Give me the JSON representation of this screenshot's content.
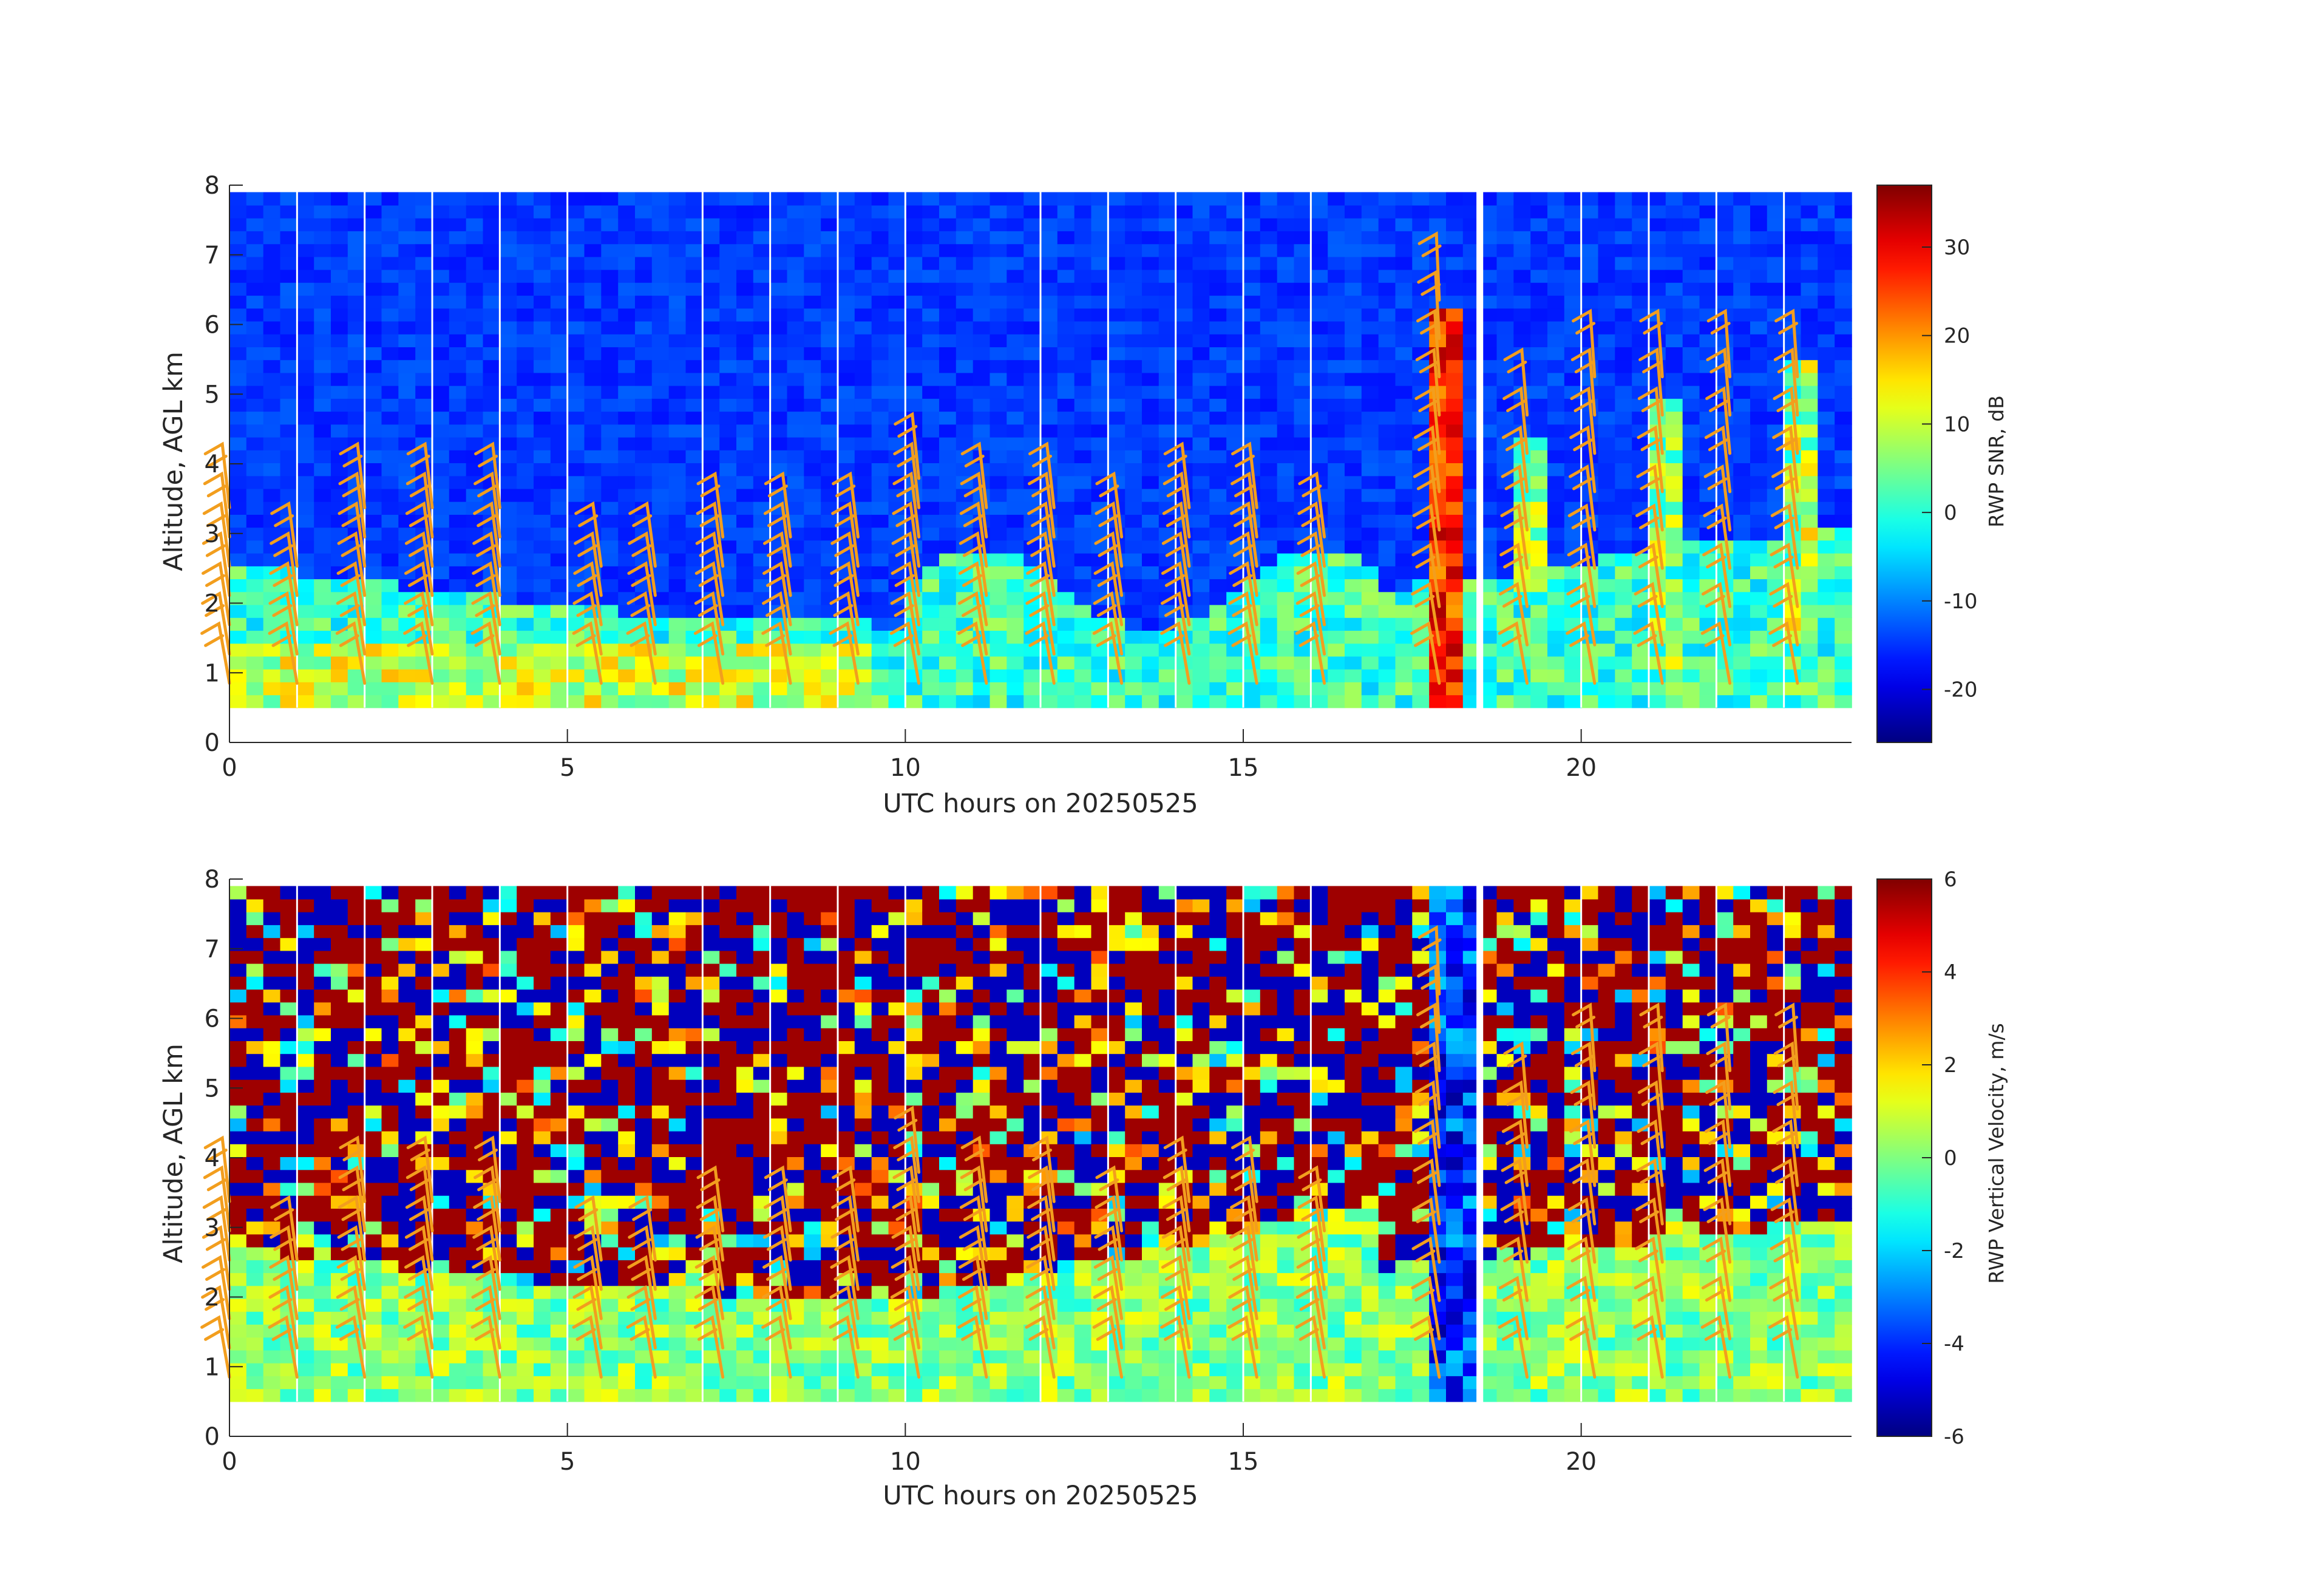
{
  "chart_data": [
    {
      "type": "heatmap",
      "title": "",
      "xlabel": "UTC hours on 20250525",
      "ylabel": "Altitude, AGL km",
      "xlim": [
        0,
        24
      ],
      "ylim": [
        0,
        8
      ],
      "x_ticks": [
        0,
        5,
        10,
        15,
        20
      ],
      "y_ticks": [
        0,
        1,
        2,
        3,
        4,
        5,
        6,
        7,
        8
      ],
      "colorbar": {
        "label": "RWP SNR, dB",
        "colormap": "jet",
        "range": [
          -26,
          37
        ],
        "ticks": [
          -20,
          -10,
          0,
          10,
          20,
          30
        ]
      },
      "data_range_km": [
        0.5,
        7.9
      ],
      "barb_color": "#f29e1e",
      "barb_times": [
        0,
        1,
        2,
        3,
        4,
        5.5,
        6.3,
        7.3,
        8.3,
        9.3,
        10.2,
        11.2,
        12.2,
        13.2,
        14.2,
        15.2,
        16.2,
        17.9,
        19.2,
        20.2,
        21.2,
        22.2,
        23.2
      ],
      "barb_tops_km": [
        3.5,
        2.9,
        3.6,
        3.6,
        3.5,
        2.7,
        2.8,
        3.2,
        3.2,
        3.2,
        3.8,
        3.7,
        3.6,
        3.3,
        3.5,
        3.5,
        3.3,
        6.8,
        4.7,
        5.3,
        5.3,
        5.3,
        5.3
      ]
    },
    {
      "type": "heatmap",
      "title": "",
      "xlabel": "UTC hours on 20250525",
      "ylabel": "Altitude, AGL km",
      "xlim": [
        0,
        24
      ],
      "ylim": [
        0,
        8
      ],
      "x_ticks": [
        0,
        5,
        10,
        15,
        20
      ],
      "y_ticks": [
        0,
        1,
        2,
        3,
        4,
        5,
        6,
        7,
        8
      ],
      "colorbar": {
        "label": "RWP Vertical Velocity, m/s",
        "colormap": "jet",
        "range": [
          -6,
          6
        ],
        "ticks": [
          -6,
          -4,
          -2,
          0,
          2,
          4,
          6
        ]
      },
      "data_range_km": [
        0.5,
        7.9
      ],
      "barb_color": "#f29e1e",
      "barb_times": [
        0,
        1,
        2,
        3,
        4,
        5.5,
        6.3,
        7.3,
        8.3,
        9.3,
        10.2,
        11.2,
        12.2,
        13.2,
        14.2,
        15.2,
        16.2,
        17.9,
        19.2,
        20.2,
        21.2,
        22.2,
        23.2
      ],
      "barb_tops_km": [
        3.5,
        2.9,
        3.6,
        3.6,
        3.5,
        2.7,
        2.8,
        3.2,
        3.2,
        3.2,
        3.8,
        3.7,
        3.6,
        3.3,
        3.5,
        3.5,
        3.3,
        6.8,
        4.7,
        5.3,
        5.3,
        5.3,
        5.3
      ]
    }
  ]
}
